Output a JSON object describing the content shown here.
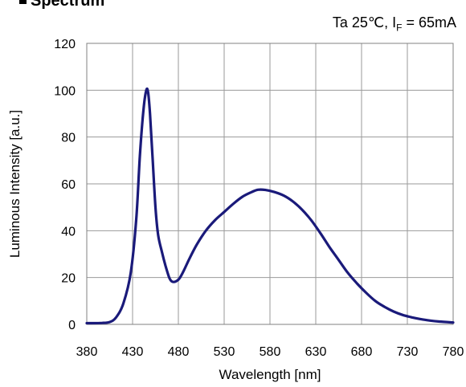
{
  "header": {
    "title": "Spectrum",
    "condition_prefix": "Ta 25℃,  I",
    "condition_sub": "F",
    "condition_suffix": " = 65mA"
  },
  "chart_data": {
    "type": "line",
    "title": "Spectrum",
    "xlabel": "Wavelength [nm]",
    "ylabel": "Luminous Intensity  [a.u.]",
    "xlim": [
      380,
      780
    ],
    "ylim": [
      0,
      120
    ],
    "xticks": [
      380,
      430,
      480,
      530,
      580,
      630,
      680,
      730,
      780
    ],
    "yticks": [
      0,
      20,
      40,
      60,
      80,
      100,
      120
    ],
    "x_tick_labels": [
      "380",
      "430",
      "480",
      "530",
      "580",
      "630",
      "680",
      "730",
      "780"
    ],
    "y_tick_labels": [
      "0",
      "20",
      "40",
      "60",
      "80",
      "100",
      "120"
    ],
    "grid": true,
    "legend": "none",
    "series": [
      {
        "color": "#1a1a7a",
        "points": [
          [
            380,
            0.5
          ],
          [
            395,
            0.6
          ],
          [
            405,
            1
          ],
          [
            412,
            3
          ],
          [
            420,
            9
          ],
          [
            428,
            22
          ],
          [
            434,
            45
          ],
          [
            438,
            72
          ],
          [
            442,
            92
          ],
          [
            445,
            100
          ],
          [
            447,
            99
          ],
          [
            449,
            90
          ],
          [
            452,
            70
          ],
          [
            455,
            50
          ],
          [
            458,
            38
          ],
          [
            462,
            31
          ],
          [
            466,
            25
          ],
          [
            470,
            20
          ],
          [
            473,
            18.3
          ],
          [
            477,
            18.3
          ],
          [
            481,
            19.5
          ],
          [
            486,
            23
          ],
          [
            492,
            28
          ],
          [
            500,
            34
          ],
          [
            510,
            40
          ],
          [
            520,
            44.5
          ],
          [
            530,
            48
          ],
          [
            540,
            51.5
          ],
          [
            550,
            54.5
          ],
          [
            560,
            56.5
          ],
          [
            567,
            57.5
          ],
          [
            575,
            57.4
          ],
          [
            585,
            56.5
          ],
          [
            595,
            55
          ],
          [
            605,
            52.5
          ],
          [
            615,
            49
          ],
          [
            625,
            44.5
          ],
          [
            635,
            39
          ],
          [
            645,
            33
          ],
          [
            655,
            27.5
          ],
          [
            665,
            22
          ],
          [
            675,
            17.5
          ],
          [
            685,
            13.5
          ],
          [
            695,
            10
          ],
          [
            705,
            7.5
          ],
          [
            715,
            5.5
          ],
          [
            725,
            4
          ],
          [
            735,
            3
          ],
          [
            745,
            2.2
          ],
          [
            755,
            1.6
          ],
          [
            765,
            1.2
          ],
          [
            780,
            0.8
          ]
        ]
      }
    ]
  }
}
